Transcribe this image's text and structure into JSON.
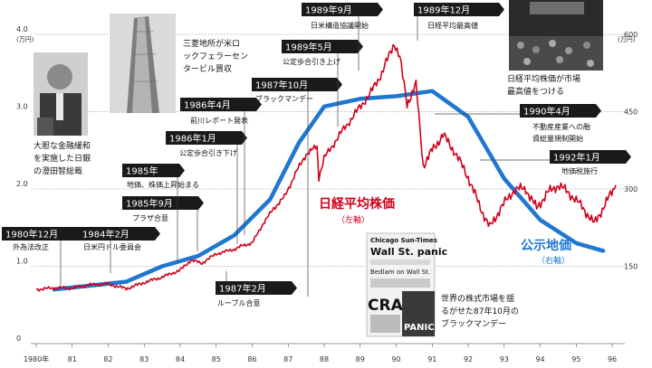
{
  "chart_data": {
    "type": "line",
    "axes": {
      "left_unit": "(万円)",
      "right_unit": "(万円)",
      "left_ticks": [
        "0",
        "1.0",
        "2.0",
        "3.0",
        "4.0"
      ],
      "right_ticks": [
        "150",
        "300",
        "450",
        "600"
      ],
      "x_ticks": [
        "1980年",
        "81",
        "82",
        "83",
        "84",
        "85",
        "86",
        "87",
        "88",
        "89",
        "90",
        "91",
        "92",
        "93",
        "94",
        "95",
        "96"
      ],
      "left_range": [
        0,
        4.0
      ],
      "right_range": [
        0,
        600
      ],
      "x_range": [
        1980.0,
        1996.2
      ],
      "grid": "horizontal dotted"
    },
    "series": [
      {
        "name": "日経平均株価",
        "axis_note": "（左軸）",
        "axis": "left",
        "color": "#d0021b",
        "points": [
          [
            1980.0,
            0.7
          ],
          [
            1980.5,
            0.72
          ],
          [
            1981.0,
            0.72
          ],
          [
            1981.5,
            0.76
          ],
          [
            1982.0,
            0.77
          ],
          [
            1982.5,
            0.71
          ],
          [
            1983.0,
            0.79
          ],
          [
            1983.5,
            0.86
          ],
          [
            1984.0,
            0.95
          ],
          [
            1984.3,
            1.08
          ],
          [
            1984.6,
            1.04
          ],
          [
            1985.0,
            1.16
          ],
          [
            1985.5,
            1.22
          ],
          [
            1985.75,
            1.27
          ],
          [
            1986.0,
            1.3
          ],
          [
            1986.3,
            1.55
          ],
          [
            1986.6,
            1.75
          ],
          [
            1986.9,
            1.9
          ],
          [
            1987.2,
            2.2
          ],
          [
            1987.5,
            2.45
          ],
          [
            1987.8,
            2.55
          ],
          [
            1987.85,
            2.15
          ],
          [
            1988.0,
            2.4
          ],
          [
            1988.5,
            2.75
          ],
          [
            1988.9,
            3.0
          ],
          [
            1989.3,
            3.25
          ],
          [
            1989.6,
            3.5
          ],
          [
            1989.95,
            3.89
          ],
          [
            1990.1,
            3.7
          ],
          [
            1990.3,
            3.1
          ],
          [
            1990.55,
            3.35
          ],
          [
            1990.75,
            2.3
          ],
          [
            1991.0,
            2.5
          ],
          [
            1991.3,
            2.7
          ],
          [
            1991.6,
            2.5
          ],
          [
            1992.0,
            2.15
          ],
          [
            1992.3,
            1.8
          ],
          [
            1992.6,
            1.5
          ],
          [
            1992.9,
            1.75
          ],
          [
            1993.3,
            2.0
          ],
          [
            1993.6,
            2.0
          ],
          [
            1993.9,
            1.75
          ],
          [
            1994.2,
            1.95
          ],
          [
            1994.5,
            2.05
          ],
          [
            1994.8,
            1.95
          ],
          [
            1995.2,
            1.75
          ],
          [
            1995.5,
            1.55
          ],
          [
            1995.8,
            1.8
          ],
          [
            1996.1,
            2.05
          ]
        ]
      },
      {
        "name": "公示地価",
        "axis_note": "（右軸）",
        "axis": "right",
        "color": "#1f77d0",
        "points": [
          [
            1980.5,
            105
          ],
          [
            1982.5,
            120
          ],
          [
            1983.5,
            150
          ],
          [
            1984.5,
            170
          ],
          [
            1985.5,
            210
          ],
          [
            1986.5,
            280
          ],
          [
            1987.3,
            390
          ],
          [
            1988.0,
            460
          ],
          [
            1989.0,
            475
          ],
          [
            1990.0,
            480
          ],
          [
            1991.0,
            490
          ],
          [
            1992.0,
            440
          ],
          [
            1993.0,
            320
          ],
          [
            1994.0,
            240
          ],
          [
            1995.0,
            195
          ],
          [
            1995.75,
            180
          ]
        ]
      }
    ],
    "annotations": [
      {
        "date": "1980年12月",
        "text": "外為法改正"
      },
      {
        "date": "1984年2月",
        "text": "日米円ドル委員会"
      },
      {
        "date": "1985年9月",
        "text": "プラザ合意"
      },
      {
        "date": "1985年",
        "text": "地価、株価上昇始まる"
      },
      {
        "date": "1986年1月",
        "text": "公定歩合引き下げ"
      },
      {
        "date": "1986年4月",
        "text": "前川レポート発表"
      },
      {
        "date": "1987年2月",
        "text": "ルーブル合意"
      },
      {
        "date": "1987年10月",
        "text": "ブラックマンデー"
      },
      {
        "date": "1989年5月",
        "text": "公定歩合引き上げ"
      },
      {
        "date": "1989年9月",
        "text": "日米構造協議開始"
      },
      {
        "date": "1989年12月",
        "text": "日経平均最高値"
      },
      {
        "date": "1990年4月",
        "text": "不動産産業への融資総量規制開始"
      },
      {
        "date": "1992年1月",
        "text": "地価税施行"
      }
    ],
    "photo_captions": [
      {
        "id": "governor",
        "lines": [
          "大胆な金融緩和",
          "を実施した日銀",
          "の澄田智総裁"
        ]
      },
      {
        "id": "building",
        "lines": [
          "三菱地所が米ロ",
          "ックフェラーセン",
          "タービル買収"
        ]
      },
      {
        "id": "exchange",
        "lines": [
          "日経平均株価が市場",
          "最高値をつける"
        ]
      },
      {
        "id": "newspaper",
        "lines": [
          "世界の株式市場を揺",
          "るがせた87年10月の",
          "ブラックマンデー"
        ]
      }
    ],
    "newspaper_text": [
      "Chicago Sun-Times",
      "Wall St. panic",
      "Bedlam on Wall St.",
      "CRAS",
      "PANIC"
    ]
  }
}
